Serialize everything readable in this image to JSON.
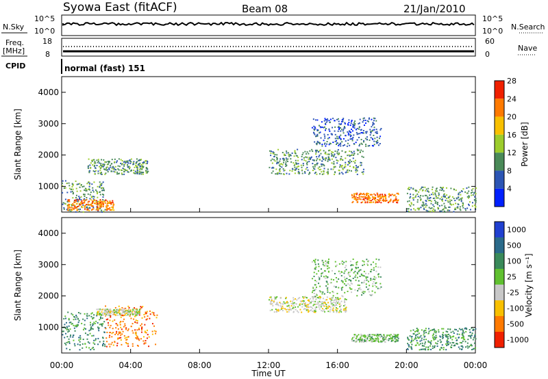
{
  "header": {
    "station": "Syowa East (fitACF)",
    "beam": "Beam 08",
    "date": "21/Jan/2010"
  },
  "top_panels": {
    "nsky_label": "N.Sky",
    "nsky_ticks": [
      "10^5",
      "10^0"
    ],
    "nsearch_label": "N.Search",
    "nsearch_ticks": [
      "10^5",
      "10^0"
    ],
    "freq_label": "Freq.",
    "freq_unit": "[MHz]",
    "freq_ticks": [
      "18",
      "8"
    ],
    "nave_label": "Nave",
    "nave_ticks": [
      "60",
      "0"
    ],
    "cpid_label": "CPID",
    "cpid_text": "normal (fast) 151"
  },
  "chart_data": [
    {
      "type": "heatmap",
      "name": "power",
      "ylabel": "Slant Range [km]",
      "ylim": [
        180,
        4500
      ],
      "yticks": [
        1000,
        2000,
        3000,
        4000
      ],
      "xlim": [
        0,
        24
      ],
      "colorbar_label": "Power [dB]",
      "colorbar_ticks": [
        "4",
        "8",
        "12",
        "16",
        "20",
        "24",
        "28"
      ],
      "colors": [
        "#0020ff",
        "#2c55b4",
        "#4a8a58",
        "#9ccc2c",
        "#f8c000",
        "#ff7a00",
        "#f02000"
      ],
      "scatter_bands": [
        {
          "t0": 0.0,
          "t1": 2.5,
          "r0": 200,
          "r1": 1200,
          "level": 2
        },
        {
          "t0": 0.3,
          "t1": 3.0,
          "r0": 250,
          "r1": 600,
          "level": 5
        },
        {
          "t0": 1.5,
          "t1": 5.0,
          "r0": 1400,
          "r1": 1900,
          "level": 2
        },
        {
          "t0": 12.0,
          "t1": 17.5,
          "r0": 1400,
          "r1": 2200,
          "level": 2
        },
        {
          "t0": 14.5,
          "t1": 18.5,
          "r0": 2300,
          "r1": 3200,
          "level": 1
        },
        {
          "t0": 16.8,
          "t1": 19.5,
          "r0": 500,
          "r1": 800,
          "level": 5
        },
        {
          "t0": 20.0,
          "t1": 24.0,
          "r0": 200,
          "r1": 1000,
          "level": 2
        }
      ]
    },
    {
      "type": "heatmap",
      "name": "velocity",
      "ylabel": "Slant Range [km]",
      "ylim": [
        180,
        4500
      ],
      "yticks": [
        1000,
        2000,
        3000,
        4000
      ],
      "xlim": [
        0,
        24
      ],
      "xlabel": "Time UT",
      "xticks": [
        "00:00",
        "04:00",
        "08:00",
        "12:00",
        "16:00",
        "20:00",
        "00:00"
      ],
      "colorbar_label": "Velocity [m s⁻¹]",
      "colorbar_ticks": [
        "1000",
        "500",
        "100",
        "25",
        "-25",
        "-100",
        "-500",
        "-1000"
      ],
      "colors": [
        "#2040d0",
        "#2a6a8a",
        "#3a8a5a",
        "#60c030",
        "#c8c8c8",
        "#f8c000",
        "#ff7a00",
        "#f02000"
      ],
      "scatter_bands": [
        {
          "t0": 0.0,
          "t1": 2.5,
          "r0": 300,
          "r1": 1500,
          "level": 2
        },
        {
          "t0": 2.5,
          "t1": 5.5,
          "r0": 400,
          "r1": 1700,
          "level": 6
        },
        {
          "t0": 2.0,
          "t1": 4.5,
          "r0": 1400,
          "r1": 1600,
          "level": 4
        },
        {
          "t0": 12.0,
          "t1": 16.5,
          "r0": 1500,
          "r1": 2000,
          "level": 4
        },
        {
          "t0": 14.5,
          "t1": 18.5,
          "r0": 2000,
          "r1": 3200,
          "level": 3
        },
        {
          "t0": 16.8,
          "t1": 19.5,
          "r0": 550,
          "r1": 800,
          "level": 3
        },
        {
          "t0": 20.0,
          "t1": 24.0,
          "r0": 300,
          "r1": 1000,
          "level": 2
        }
      ]
    }
  ]
}
